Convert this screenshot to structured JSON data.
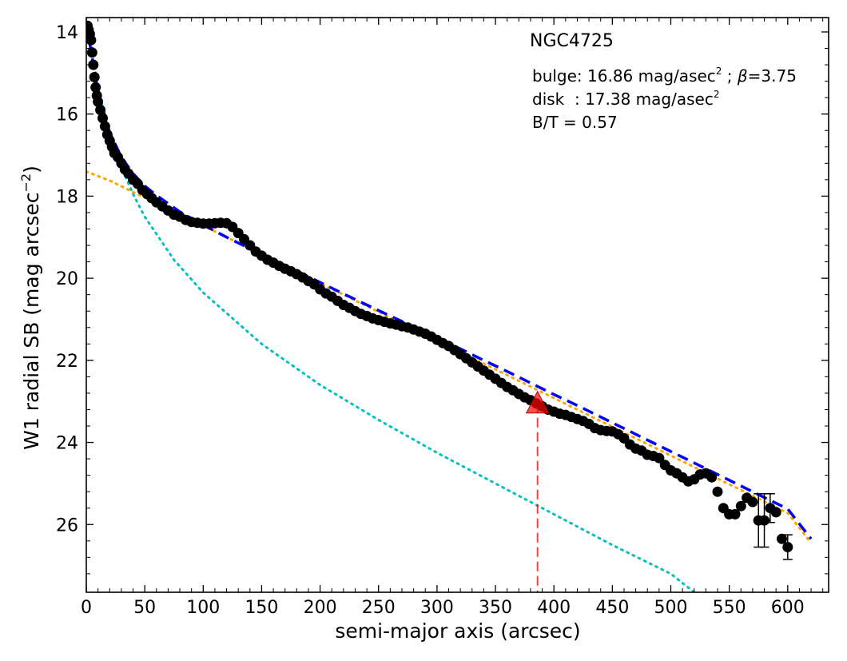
{
  "chart_data": {
    "type": "scatter",
    "title": "NGC4725",
    "xlabel": "semi-major axis (arcsec)",
    "ylabel_main": "W1 radial SB (mag arcsec",
    "ylabel_exp": "−2",
    "ylabel_close": ")",
    "xlim": [
      0,
      635
    ],
    "ylim": [
      27.65,
      13.65
    ],
    "y_inverted": true,
    "xticks": [
      0,
      50,
      100,
      150,
      200,
      250,
      300,
      350,
      400,
      450,
      500,
      550,
      600
    ],
    "yticks": [
      14,
      16,
      18,
      20,
      22,
      24,
      26
    ],
    "grid": false,
    "annotations": {
      "bulge_prefix": "bulge: 16.86 mag/asec",
      "bulge_sup": "2",
      "bulge_mid": " ; ",
      "bulge_beta": "β",
      "bulge_suffix": "=3.75",
      "disk_prefix": "disk  : 17.38 mag/asec",
      "disk_sup": "2",
      "bt": "B/T = 0.57"
    },
    "colors": {
      "data": "#000000",
      "total_fit": "#0000ff",
      "disk": "#ffa500",
      "bulge": "#00c0c0",
      "marker": "#ff0000"
    },
    "marker": {
      "x": 386,
      "y": 23.05
    },
    "series": [
      {
        "kind": "observed",
        "x": [
          1,
          2,
          3,
          4,
          5,
          6,
          7,
          8,
          9,
          10,
          12,
          14,
          16,
          18,
          20,
          22,
          24,
          27,
          30,
          33,
          36,
          40,
          44,
          48,
          52,
          56,
          60,
          65,
          70,
          75,
          80,
          85,
          90,
          95,
          100,
          105,
          110,
          115,
          120,
          125,
          130,
          135,
          140,
          145,
          150,
          155,
          160,
          165,
          170,
          175,
          180,
          185,
          190,
          195,
          200,
          205,
          210,
          215,
          220,
          225,
          230,
          235,
          240,
          245,
          250,
          255,
          260,
          265,
          270,
          275,
          280,
          285,
          290,
          295,
          300,
          305,
          310,
          315,
          320,
          325,
          330,
          335,
          340,
          345,
          350,
          355,
          360,
          365,
          370,
          375,
          380,
          385,
          390,
          395,
          400,
          405,
          410,
          415,
          420,
          425,
          430,
          435,
          440,
          445,
          450,
          455,
          460,
          465,
          470,
          475,
          480,
          485,
          490,
          495,
          500,
          505,
          510,
          515,
          520,
          525,
          530,
          535,
          540,
          545,
          550,
          555,
          560,
          565,
          570,
          575,
          580,
          585,
          590,
          595,
          600
        ],
        "y": [
          13.85,
          13.95,
          14.05,
          14.2,
          14.5,
          14.8,
          15.1,
          15.35,
          15.55,
          15.7,
          15.9,
          16.1,
          16.3,
          16.5,
          16.65,
          16.8,
          16.95,
          17.05,
          17.2,
          17.35,
          17.45,
          17.6,
          17.7,
          17.85,
          17.95,
          18.05,
          18.15,
          18.25,
          18.35,
          18.45,
          18.5,
          18.58,
          18.63,
          18.65,
          18.67,
          18.67,
          18.66,
          18.65,
          18.66,
          18.75,
          18.9,
          19.05,
          19.2,
          19.35,
          19.45,
          19.55,
          19.62,
          19.7,
          19.77,
          19.83,
          19.9,
          19.98,
          20.07,
          20.15,
          20.27,
          20.37,
          20.45,
          20.55,
          20.65,
          20.72,
          20.8,
          20.87,
          20.92,
          20.98,
          21.02,
          21.06,
          21.1,
          21.13,
          21.17,
          21.2,
          21.25,
          21.3,
          21.35,
          21.42,
          21.5,
          21.58,
          21.65,
          21.75,
          21.85,
          21.95,
          22.05,
          22.15,
          22.25,
          22.35,
          22.45,
          22.55,
          22.65,
          22.73,
          22.82,
          22.9,
          22.97,
          23.05,
          23.12,
          23.2,
          23.25,
          23.3,
          23.33,
          23.38,
          23.43,
          23.48,
          23.55,
          23.65,
          23.7,
          23.72,
          23.73,
          23.8,
          23.9,
          24.05,
          24.15,
          24.2,
          24.3,
          24.33,
          24.38,
          24.55,
          24.68,
          24.75,
          24.85,
          24.95,
          24.9,
          24.78,
          24.75,
          24.85,
          25.2,
          25.6,
          25.75,
          25.75,
          25.55,
          25.35,
          25.45,
          25.9,
          25.9,
          25.6,
          25.7,
          26.35,
          26.55
        ]
      },
      {
        "name": "total",
        "x": [
          0,
          10,
          20,
          30,
          40,
          50,
          60,
          80,
          100,
          120,
          140,
          160,
          180,
          200,
          220,
          240,
          260,
          280,
          300,
          320,
          340,
          360,
          380,
          400,
          420,
          440,
          460,
          480,
          500,
          520,
          540,
          560,
          580,
          600,
          620
        ],
        "y": [
          13.8,
          15.45,
          16.45,
          17.05,
          17.45,
          17.75,
          17.98,
          18.38,
          18.7,
          19.0,
          19.28,
          19.55,
          19.82,
          20.1,
          20.38,
          20.65,
          20.92,
          21.18,
          21.45,
          21.72,
          22.0,
          22.27,
          22.55,
          22.83,
          23.1,
          23.38,
          23.66,
          23.94,
          24.22,
          24.5,
          24.78,
          25.06,
          25.34,
          25.62,
          26.35
        ]
      },
      {
        "name": "disk",
        "x": [
          0,
          20,
          40,
          60,
          80,
          100,
          150,
          200,
          250,
          300,
          350,
          400,
          450,
          500,
          550,
          600,
          620
        ],
        "y": [
          17.4,
          17.62,
          17.9,
          18.17,
          18.45,
          18.72,
          19.42,
          20.12,
          20.82,
          21.52,
          22.22,
          22.92,
          23.62,
          24.32,
          25.02,
          25.72,
          26.45
        ]
      },
      {
        "name": "bulge",
        "x": [
          1,
          5,
          10,
          15,
          20,
          30,
          40,
          50,
          75,
          100,
          150,
          200,
          250,
          300,
          350,
          400,
          450,
          500,
          520
        ],
        "y": [
          13.6,
          14.5,
          15.35,
          15.95,
          16.45,
          17.3,
          17.95,
          18.5,
          19.55,
          20.35,
          21.6,
          22.6,
          23.45,
          24.25,
          25.0,
          25.75,
          26.5,
          27.2,
          27.65
        ]
      }
    ],
    "error_bars": [
      {
        "x": 575,
        "y": 25.9,
        "lo": 25.25,
        "hi": 26.55
      },
      {
        "x": 580,
        "y": 25.9,
        "lo": 25.25,
        "hi": 26.55
      },
      {
        "x": 585,
        "y": 25.6,
        "lo": 25.25,
        "hi": 25.95
      },
      {
        "x": 600,
        "y": 26.55,
        "lo": 26.25,
        "hi": 26.85
      }
    ]
  }
}
